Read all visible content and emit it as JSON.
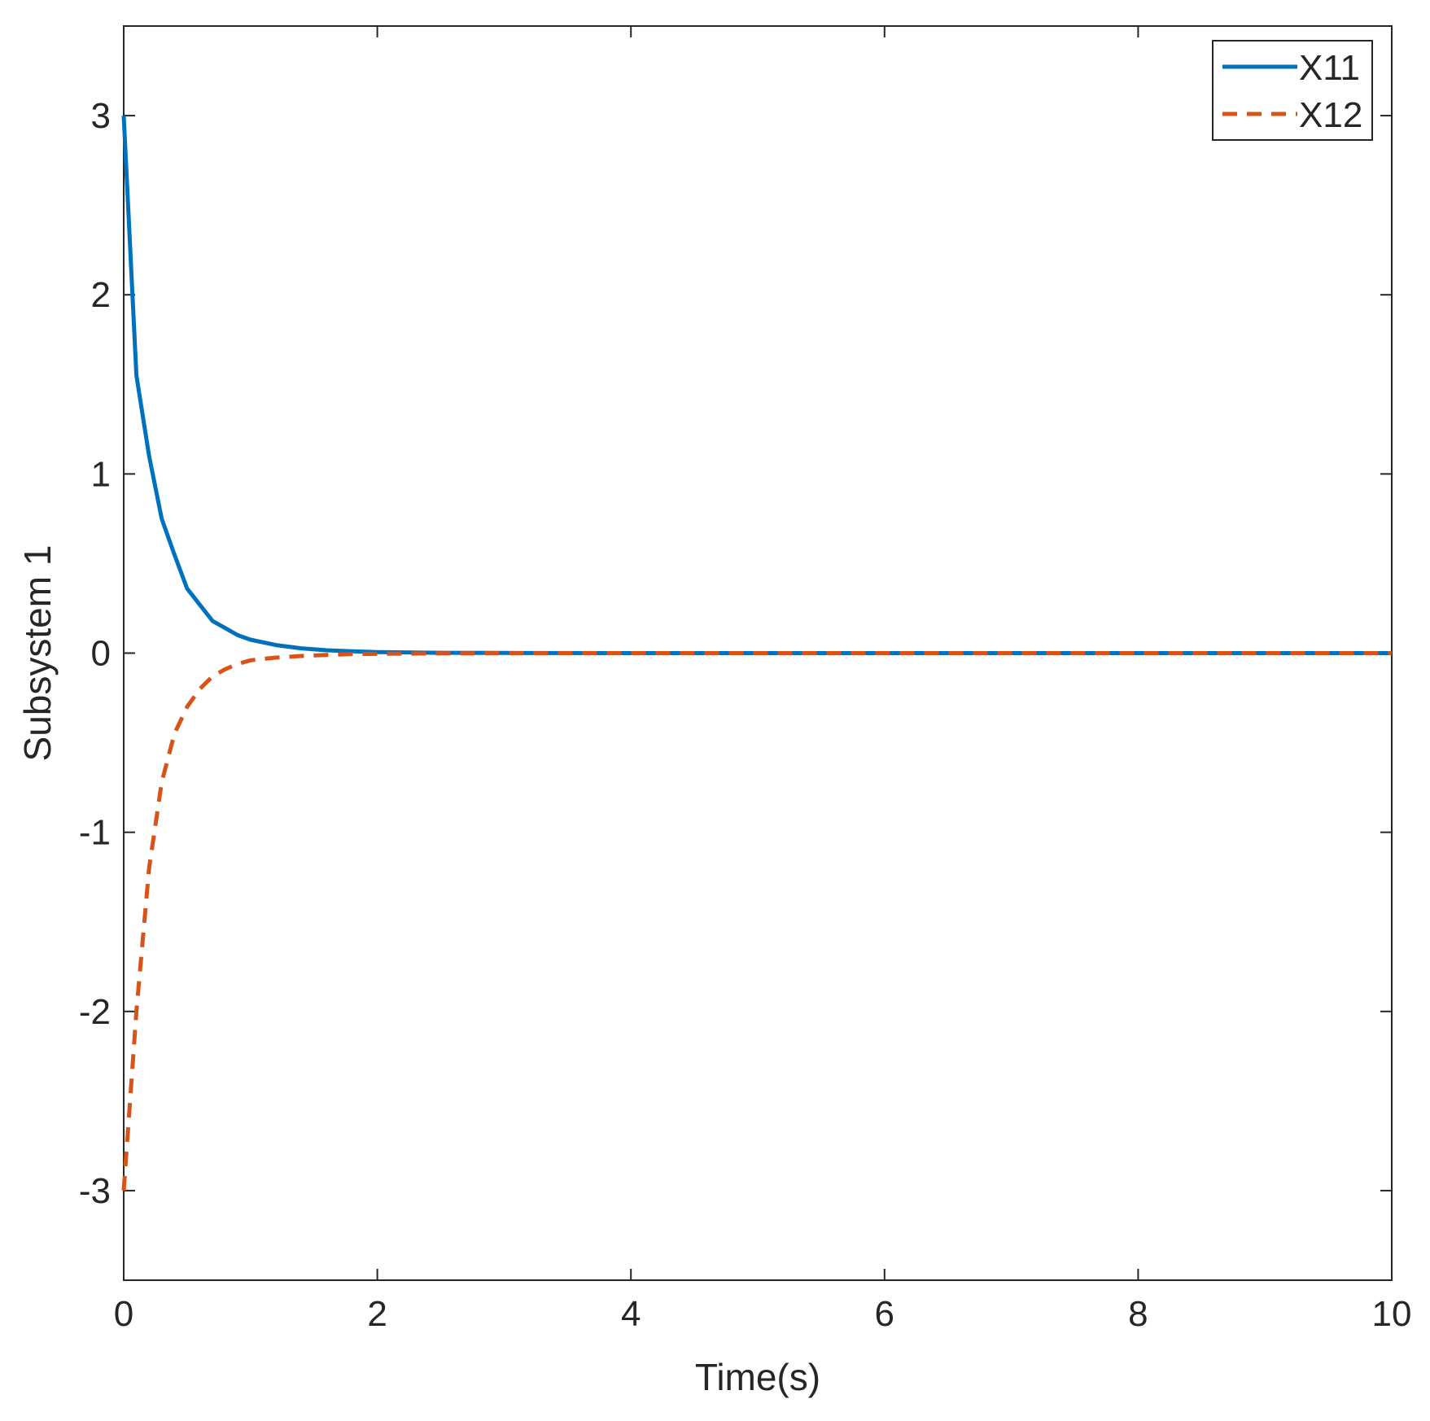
{
  "chart_data": {
    "type": "line",
    "title": "",
    "xlabel": "Time(s)",
    "ylabel": "Subsystem 1",
    "xlim": [
      0,
      10
    ],
    "ylim": [
      -3.5,
      3.5
    ],
    "xticks": [
      0,
      2,
      4,
      6,
      8,
      10
    ],
    "xtick_labels": [
      "0",
      "2",
      "4",
      "6",
      "8",
      "10"
    ],
    "yticks": [
      -3,
      -2,
      -1,
      0,
      1,
      2,
      3
    ],
    "ytick_labels": [
      "-3",
      "-2",
      "-1",
      "0",
      "1",
      "2",
      "3"
    ],
    "grid": false,
    "box": true,
    "legend_position": "top-right",
    "x": [
      0,
      0.1,
      0.2,
      0.3,
      0.4,
      0.5,
      0.6,
      0.7,
      0.8,
      0.9,
      1.0,
      1.2,
      1.4,
      1.6,
      1.8,
      2.0,
      2.5,
      3.0,
      4.0,
      5.0,
      6.0,
      7.0,
      8.0,
      9.0,
      10.0
    ],
    "series": [
      {
        "name": "X11",
        "color": "#0072BD",
        "style": "solid",
        "values": [
          3.0,
          1.55,
          1.1,
          0.75,
          0.55,
          0.36,
          0.27,
          0.18,
          0.14,
          0.1,
          0.075,
          0.045,
          0.027,
          0.016,
          0.01,
          0.006,
          0.002,
          0.0008,
          0.0001,
          0,
          0,
          0,
          0,
          0,
          0
        ]
      },
      {
        "name": "X12",
        "color": "#D95319",
        "style": "dashed",
        "values": [
          -3.0,
          -2.0,
          -1.2,
          -0.72,
          -0.45,
          -0.3,
          -0.2,
          -0.13,
          -0.09,
          -0.06,
          -0.04,
          -0.025,
          -0.016,
          -0.01,
          -0.006,
          -0.004,
          -0.0015,
          -0.0006,
          -0.0001,
          0,
          0,
          0,
          0,
          0,
          0
        ]
      }
    ]
  }
}
